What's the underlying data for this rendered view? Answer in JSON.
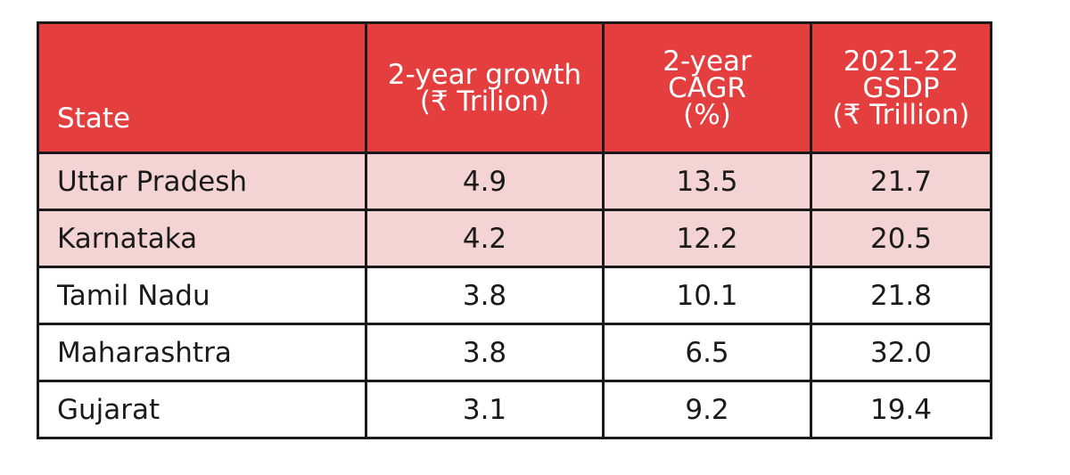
{
  "chart_data": {
    "type": "table",
    "columns": [
      {
        "key": "state",
        "lines": [
          "State"
        ]
      },
      {
        "key": "growth",
        "lines": [
          "2-year growth",
          "(₹ Trilion)"
        ]
      },
      {
        "key": "cagr",
        "lines": [
          "2-year",
          "CAGR",
          "(%)"
        ]
      },
      {
        "key": "gsdp",
        "lines": [
          "2021-22",
          "GSDP",
          "(₹ Trillion)"
        ]
      }
    ],
    "rows": [
      {
        "state": "Uttar Pradesh",
        "growth": "4.9",
        "cagr": "13.5",
        "gsdp": "21.7",
        "highlight": true
      },
      {
        "state": "Karnataka",
        "growth": "4.2",
        "cagr": "12.2",
        "gsdp": "20.5",
        "highlight": true
      },
      {
        "state": "Tamil Nadu",
        "growth": "3.8",
        "cagr": "10.1",
        "gsdp": "21.8",
        "highlight": false
      },
      {
        "state": "Maharashtra",
        "growth": "3.8",
        "cagr": "6.5",
        "gsdp": "32.0",
        "highlight": false
      },
      {
        "state": "Gujarat",
        "growth": "3.1",
        "cagr": "9.2",
        "gsdp": "19.4",
        "highlight": false
      }
    ]
  },
  "colors": {
    "header_bg": "#e53e3e",
    "header_text": "#ffffff",
    "highlight_row_bg": "#f4d3d5",
    "border": "#1a1a1a",
    "text": "#1a1a1a"
  }
}
